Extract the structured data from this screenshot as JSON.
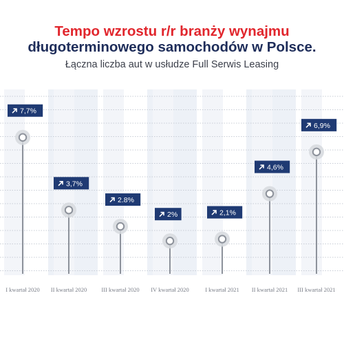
{
  "title_line1": "Tempo wzrostu r/r branży wynajmu",
  "title_line2": "długoterminowego samochodów w Polsce.",
  "subtitle": "Łączna liczba aut w usłudze Full Serwis Leasing",
  "colors": {
    "title_red": "#e1262d",
    "title_navy": "#1e2d5a",
    "badge": "#1f3a73",
    "stem": "#8d929b",
    "band": "#edf1f7"
  },
  "icons": {
    "badge_arrow": "arrow-up-right-icon"
  },
  "chart_data": {
    "type": "lollipop",
    "categories": [
      "I kwartał 2020",
      "II kwartał 2020",
      "III kwartał 2020",
      "IV kwartał 2020",
      "I kwartał 2021",
      "II kwartał 2021",
      "III kwartał 2021"
    ],
    "values": [
      7.7,
      3.7,
      2.8,
      2.0,
      2.1,
      4.6,
      6.9
    ],
    "value_labels": [
      "7,7%",
      "3,7%",
      "2.8%",
      "2%",
      "2,1%",
      "4,6%",
      "6,9%"
    ],
    "ylim": [
      0,
      10
    ],
    "grid": true,
    "legend": false
  }
}
